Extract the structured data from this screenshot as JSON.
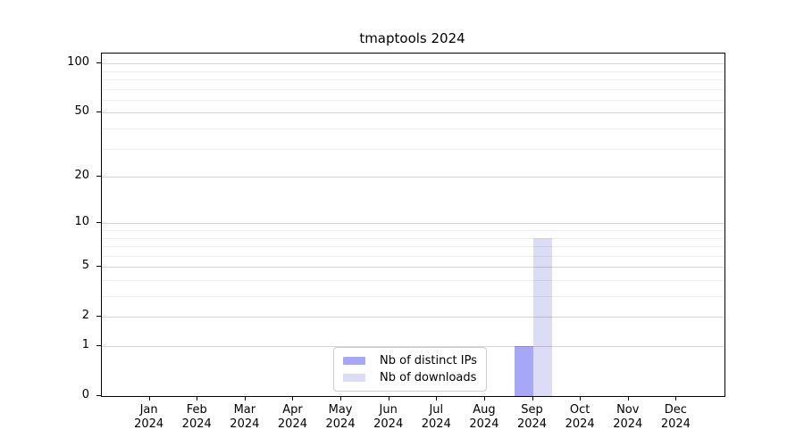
{
  "title": "tmaptools 2024",
  "chart_data": {
    "type": "bar",
    "title": "tmaptools 2024",
    "categories": [
      "Jan",
      "Feb",
      "Mar",
      "Apr",
      "May",
      "Jun",
      "Jul",
      "Aug",
      "Sep",
      "Oct",
      "Nov",
      "Dec"
    ],
    "year_label": "2024",
    "series": [
      {
        "name": "Nb of distinct IPs",
        "color": "#a7a7f7",
        "values": [
          0,
          0,
          0,
          0,
          0,
          0,
          0,
          0,
          1,
          0,
          0,
          0
        ]
      },
      {
        "name": "Nb of downloads",
        "color": "#dcdcf7",
        "values": [
          0,
          0,
          0,
          0,
          0,
          0,
          0,
          0,
          8,
          0,
          0,
          0
        ]
      }
    ],
    "yscale": "log1p",
    "ylim": [
      0,
      115
    ],
    "yticks": [
      100,
      50,
      20,
      10,
      5,
      2,
      1,
      0
    ],
    "minor_yticks": [
      3,
      4,
      6,
      7,
      8,
      9,
      30,
      40,
      60,
      70,
      80,
      90
    ],
    "grid": "horizontal",
    "legend_position": "inside-bottom-center"
  },
  "colors": {
    "background": "#ffffff",
    "axis": "#000000",
    "text": "#000000",
    "bar_distinct_ips": "#a7a7f7",
    "bar_downloads": "#dcdcf7",
    "legend_border": "#cccccc"
  }
}
